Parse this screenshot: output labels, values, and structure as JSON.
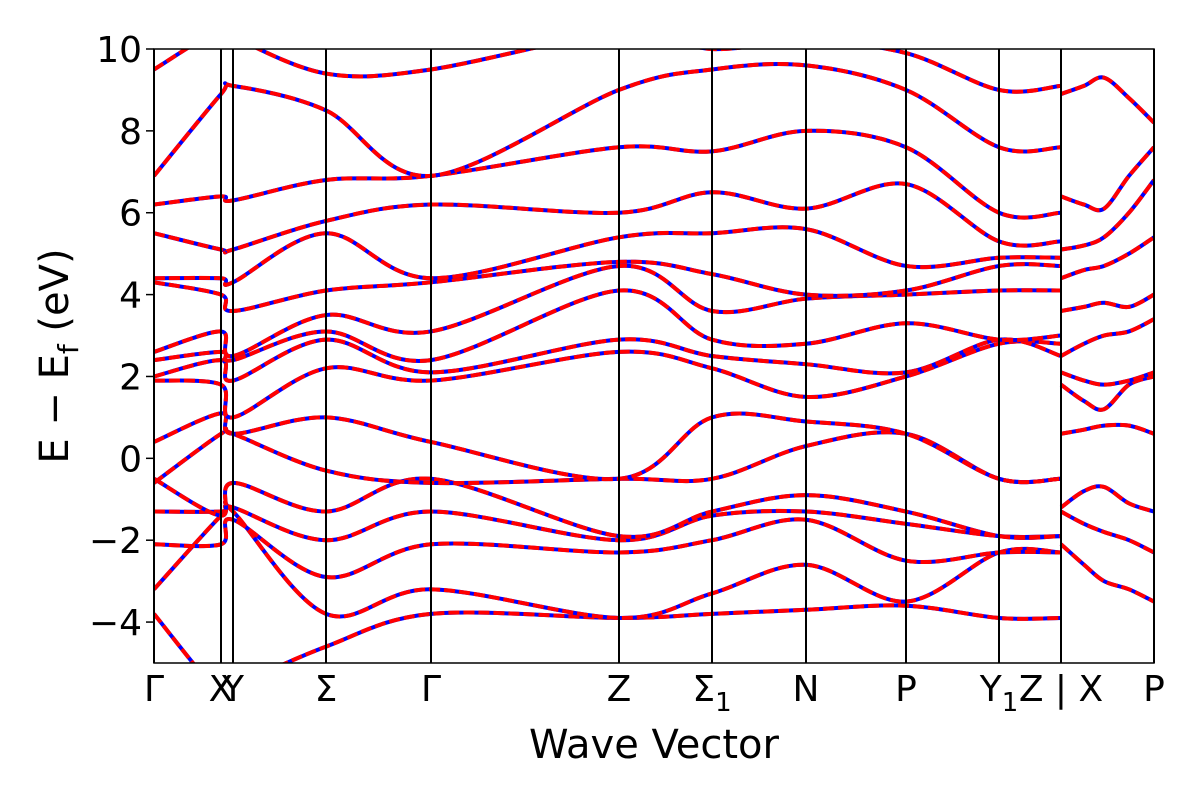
{
  "chart_data": {
    "type": "line",
    "title": "",
    "xlabel": "Wave Vector",
    "ylabel": "E − E_f (eV)",
    "ylabel_parts": {
      "main": "E − E",
      "sub": "f",
      "unit": " (eV)"
    },
    "ylim": [
      -5,
      10
    ],
    "yticks": [
      -4,
      -2,
      0,
      2,
      4,
      6,
      8,
      10
    ],
    "ytick_labels": [
      "−4",
      "−2",
      "0",
      "2",
      "4",
      "6",
      "8",
      "10"
    ],
    "xlim": [
      0,
      1
    ],
    "kpoint_ticks": [
      {
        "x": 0.0,
        "label": "Γ"
      },
      {
        "x": 0.067,
        "label": "X"
      },
      {
        "x": 0.079,
        "label": "Y"
      },
      {
        "x": 0.172,
        "label": "Σ"
      },
      {
        "x": 0.277,
        "label": "Γ"
      },
      {
        "x": 0.465,
        "label": "Z"
      },
      {
        "x": 0.558,
        "label": "Σ",
        "sub": "1"
      },
      {
        "x": 0.652,
        "label": "N"
      },
      {
        "x": 0.752,
        "label": "P"
      },
      {
        "x": 0.845,
        "label": "Y",
        "sub": "1"
      },
      {
        "x": 0.907,
        "label": "Z | X"
      },
      {
        "x": 1.0,
        "label": "P"
      }
    ],
    "grid": false,
    "legend": "none",
    "colors": {
      "series_a": "#0000ff",
      "series_b": "#ff0000",
      "kpath_lines": "#000000"
    },
    "series": [
      {
        "dash": "solid",
        "color": "#0000ff",
        "bands": [
          {
            "x": [
              0,
              0.067,
              0.079,
              0.172,
              0.277,
              0.465,
              0.558,
              0.652,
              0.752,
              0.845,
              0.907
            ],
            "y": [
              -3.8,
              -5.8,
              -5.6,
              -4.6,
              -3.8,
              -3.9,
              -3.8,
              -3.7,
              -3.6,
              -3.9,
              -3.9
            ]
          },
          {
            "x": [
              0,
              0.067,
              0.079,
              0.172,
              0.277,
              0.465,
              0.558,
              0.652,
              0.752,
              0.845,
              0.907
            ],
            "y": [
              -3.2,
              -1.4,
              -1.3,
              -3.8,
              -3.2,
              -3.9,
              -3.3,
              -2.6,
              -3.5,
              -2.3,
              -2.3
            ]
          },
          {
            "x": [
              0,
              0.067,
              0.079,
              0.172,
              0.277,
              0.465,
              0.558,
              0.652,
              0.752,
              0.845,
              0.907
            ],
            "y": [
              -2.1,
              -2.1,
              -1.5,
              -2.9,
              -2.1,
              -2.3,
              -2.0,
              -1.5,
              -2.5,
              -2.3,
              -2.3
            ]
          },
          {
            "x": [
              0,
              0.067,
              0.079,
              0.172,
              0.277,
              0.465,
              0.558,
              0.652,
              0.752,
              0.845,
              0.907
            ],
            "y": [
              -1.3,
              -1.3,
              -1.2,
              -2.0,
              -1.3,
              -2.0,
              -1.4,
              -1.3,
              -1.6,
              -1.9,
              -1.9
            ]
          },
          {
            "x": [
              0,
              0.067,
              0.079,
              0.172,
              0.277,
              0.465,
              0.558,
              0.652,
              0.752,
              0.845,
              0.907
            ],
            "y": [
              -0.5,
              -1.4,
              -0.6,
              -1.3,
              -0.5,
              -1.9,
              -1.3,
              -0.9,
              -1.3,
              -1.9,
              -1.9
            ]
          },
          {
            "x": [
              0,
              0.067,
              0.079,
              0.172,
              0.277,
              0.465,
              0.558,
              0.652,
              0.752,
              0.845,
              0.907
            ],
            "y": [
              -0.6,
              0.6,
              0.6,
              -0.3,
              -0.6,
              -0.5,
              -0.5,
              0.3,
              0.6,
              -0.5,
              -0.5
            ]
          },
          {
            "x": [
              0,
              0.067,
              0.079,
              0.172,
              0.277,
              0.465,
              0.558,
              0.652,
              0.752,
              0.845,
              0.907
            ],
            "y": [
              0.4,
              1.1,
              0.6,
              1.0,
              0.4,
              -0.5,
              1.0,
              0.9,
              0.6,
              -0.5,
              -0.5
            ]
          },
          {
            "x": [
              0,
              0.067,
              0.079,
              0.172,
              0.277,
              0.465,
              0.558,
              0.652,
              0.752,
              0.845,
              0.907
            ],
            "y": [
              1.9,
              1.8,
              1.0,
              2.2,
              1.9,
              2.6,
              2.2,
              1.5,
              2.0,
              2.8,
              2.8
            ]
          },
          {
            "x": [
              0,
              0.067,
              0.079,
              0.172,
              0.277,
              0.465,
              0.558,
              0.652,
              0.752,
              0.845,
              0.907
            ],
            "y": [
              2.0,
              2.4,
              1.9,
              2.9,
              2.1,
              2.9,
              2.5,
              2.3,
              2.1,
              2.9,
              2.5
            ]
          },
          {
            "x": [
              0,
              0.067,
              0.079,
              0.172,
              0.277,
              0.465,
              0.558,
              0.652,
              0.752,
              0.845,
              0.907
            ],
            "y": [
              2.4,
              2.6,
              2.4,
              3.1,
              2.4,
              4.1,
              2.9,
              2.8,
              3.3,
              2.9,
              3.0
            ]
          },
          {
            "x": [
              0,
              0.067,
              0.079,
              0.172,
              0.277,
              0.465,
              0.558,
              0.652,
              0.752,
              0.845,
              0.907
            ],
            "y": [
              2.6,
              3.1,
              2.5,
              3.5,
              3.1,
              4.7,
              3.6,
              3.9,
              4.0,
              4.1,
              4.1
            ]
          },
          {
            "x": [
              0,
              0.067,
              0.079,
              0.172,
              0.277,
              0.465,
              0.558,
              0.652,
              0.752,
              0.845,
              0.907
            ],
            "y": [
              4.3,
              4.0,
              3.6,
              4.1,
              4.3,
              4.8,
              4.5,
              4.0,
              4.1,
              4.7,
              4.7
            ]
          },
          {
            "x": [
              0,
              0.067,
              0.079,
              0.172,
              0.277,
              0.465,
              0.558,
              0.652,
              0.752,
              0.845,
              0.907
            ],
            "y": [
              4.4,
              4.4,
              4.3,
              5.5,
              4.4,
              5.4,
              5.5,
              5.6,
              4.7,
              4.9,
              4.9
            ]
          },
          {
            "x": [
              0,
              0.067,
              0.079,
              0.172,
              0.277,
              0.465,
              0.558,
              0.652,
              0.752,
              0.845,
              0.907
            ],
            "y": [
              5.5,
              5.1,
              5.1,
              5.8,
              6.2,
              6.0,
              6.5,
              6.1,
              6.7,
              5.3,
              5.3
            ]
          },
          {
            "x": [
              0,
              0.067,
              0.079,
              0.172,
              0.277,
              0.465,
              0.558,
              0.652,
              0.752,
              0.845,
              0.907
            ],
            "y": [
              6.2,
              6.4,
              6.3,
              6.8,
              6.9,
              7.6,
              7.5,
              8.0,
              7.6,
              6.0,
              6.0
            ]
          },
          {
            "x": [
              0,
              0.067,
              0.079,
              0.172,
              0.277,
              0.465,
              0.558,
              0.652,
              0.752,
              0.845,
              0.907
            ],
            "y": [
              6.9,
              8.9,
              9.1,
              8.5,
              6.9,
              9.0,
              9.5,
              9.6,
              9.0,
              7.6,
              7.6
            ]
          },
          {
            "x": [
              0,
              0.067,
              0.079,
              0.172,
              0.277,
              0.465,
              0.558,
              0.652,
              0.752,
              0.845,
              0.907
            ],
            "y": [
              9.5,
              10.5,
              10.3,
              9.4,
              9.5,
              10.4,
              10.0,
              10.2,
              9.9,
              9.0,
              9.1
            ]
          },
          {
            "x": [
              0.907,
              0.93,
              0.95,
              0.975,
              1.0
            ],
            "y": [
              -2.1,
              -2.6,
              -3.0,
              -3.2,
              -3.5
            ]
          },
          {
            "x": [
              0.907,
              0.93,
              0.95,
              0.975,
              1.0
            ],
            "y": [
              -1.3,
              -1.6,
              -1.8,
              -2.0,
              -2.3
            ]
          },
          {
            "x": [
              0.907,
              0.93,
              0.95,
              0.975,
              1.0
            ],
            "y": [
              -1.2,
              -0.8,
              -0.7,
              -1.1,
              -1.3
            ]
          },
          {
            "x": [
              0.907,
              0.93,
              0.95,
              0.975,
              1.0
            ],
            "y": [
              0.6,
              0.7,
              0.8,
              0.8,
              0.6
            ]
          },
          {
            "x": [
              0.907,
              0.93,
              0.95,
              0.975,
              1.0
            ],
            "y": [
              1.8,
              1.4,
              1.2,
              1.8,
              2.0
            ]
          },
          {
            "x": [
              0.907,
              0.93,
              0.95,
              0.975,
              1.0
            ],
            "y": [
              2.1,
              1.9,
              1.8,
              1.9,
              2.1
            ]
          },
          {
            "x": [
              0.907,
              0.93,
              0.95,
              0.975,
              1.0
            ],
            "y": [
              2.5,
              2.8,
              3.0,
              3.1,
              3.4
            ]
          },
          {
            "x": [
              0.907,
              0.93,
              0.95,
              0.975,
              1.0
            ],
            "y": [
              3.6,
              3.7,
              3.8,
              3.7,
              4.0
            ]
          },
          {
            "x": [
              0.907,
              0.93,
              0.95,
              0.975,
              1.0
            ],
            "y": [
              4.4,
              4.6,
              4.7,
              5.0,
              5.4
            ]
          },
          {
            "x": [
              0.907,
              0.93,
              0.95,
              0.975,
              1.0
            ],
            "y": [
              5.1,
              5.2,
              5.4,
              6.0,
              6.8
            ]
          },
          {
            "x": [
              0.907,
              0.93,
              0.95,
              0.975,
              1.0
            ],
            "y": [
              6.4,
              6.2,
              6.1,
              6.9,
              7.6
            ]
          },
          {
            "x": [
              0.907,
              0.93,
              0.95,
              0.975,
              1.0
            ],
            "y": [
              8.9,
              9.1,
              9.3,
              8.8,
              8.2
            ]
          }
        ]
      },
      {
        "dash": "dashed",
        "color": "#ff0000",
        "same_as_series_a": true
      }
    ]
  }
}
